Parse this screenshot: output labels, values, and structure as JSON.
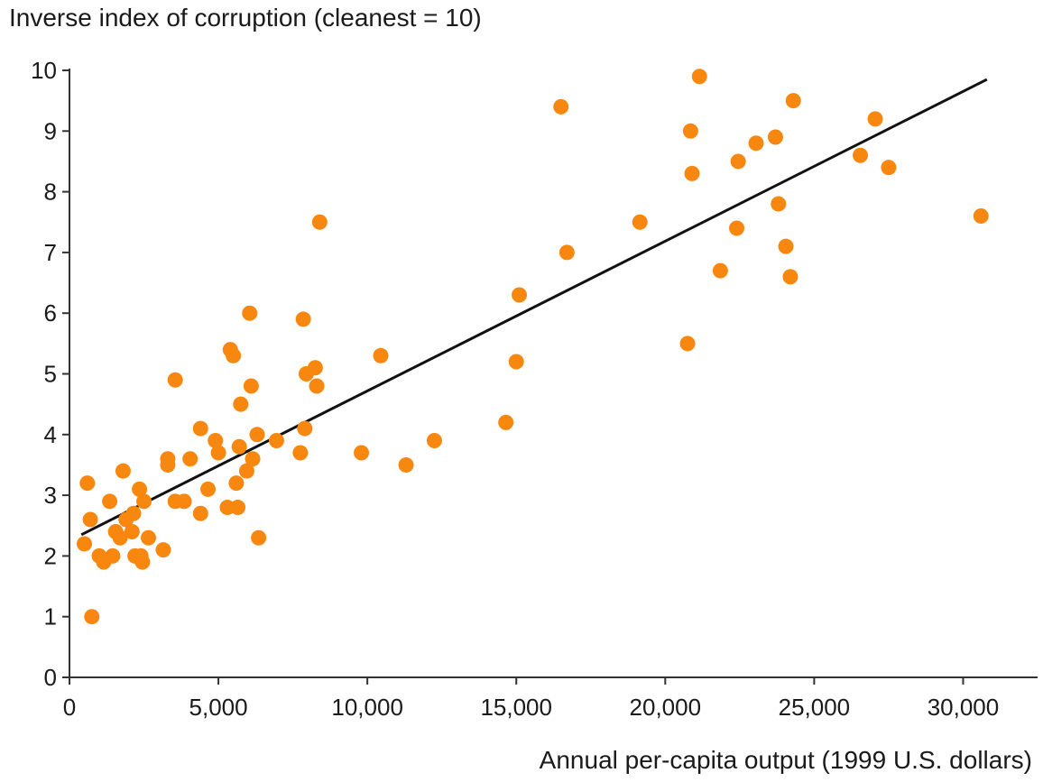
{
  "chart_data": {
    "type": "scatter",
    "title": "",
    "ylabel": "Inverse index of corruption (cleanest = 10)",
    "xlabel": "Annual per-capita output (1999 U.S. dollars)",
    "xlim": [
      0,
      32500
    ],
    "ylim": [
      0,
      10
    ],
    "x_ticks": [
      0,
      5000,
      10000,
      15000,
      20000,
      25000,
      30000
    ],
    "x_tick_labels": [
      "0",
      "5,000",
      "10,000",
      "15,000",
      "20,000",
      "25,000",
      "30,000"
    ],
    "y_ticks": [
      0,
      1,
      2,
      3,
      4,
      5,
      6,
      7,
      8,
      9,
      10
    ],
    "y_tick_labels": [
      "0",
      "1",
      "2",
      "3",
      "4",
      "5",
      "6",
      "7",
      "8",
      "9",
      "10"
    ],
    "grid": false,
    "point_color": "#f7870f",
    "line_color": "#111111",
    "trend_line": {
      "x": [
        400,
        30800
      ],
      "y": [
        2.35,
        9.85
      ]
    },
    "points": [
      {
        "x": 600,
        "y": 3.2
      },
      {
        "x": 500,
        "y": 2.2
      },
      {
        "x": 700,
        "y": 2.6
      },
      {
        "x": 750,
        "y": 1.0
      },
      {
        "x": 1000,
        "y": 2.0
      },
      {
        "x": 1150,
        "y": 1.9
      },
      {
        "x": 1350,
        "y": 2.9
      },
      {
        "x": 1450,
        "y": 2.0
      },
      {
        "x": 1550,
        "y": 2.4
      },
      {
        "x": 1700,
        "y": 2.3
      },
      {
        "x": 1800,
        "y": 3.4
      },
      {
        "x": 1900,
        "y": 2.6
      },
      {
        "x": 2100,
        "y": 2.4
      },
      {
        "x": 2150,
        "y": 2.7
      },
      {
        "x": 2200,
        "y": 2.0
      },
      {
        "x": 2350,
        "y": 3.1
      },
      {
        "x": 2400,
        "y": 2.0
      },
      {
        "x": 2450,
        "y": 1.9
      },
      {
        "x": 2500,
        "y": 2.9
      },
      {
        "x": 2650,
        "y": 2.3
      },
      {
        "x": 3150,
        "y": 2.1
      },
      {
        "x": 3300,
        "y": 3.6
      },
      {
        "x": 3300,
        "y": 3.5
      },
      {
        "x": 3550,
        "y": 2.9
      },
      {
        "x": 3550,
        "y": 4.9
      },
      {
        "x": 3850,
        "y": 2.9
      },
      {
        "x": 4050,
        "y": 3.6
      },
      {
        "x": 4400,
        "y": 2.7
      },
      {
        "x": 4400,
        "y": 4.1
      },
      {
        "x": 4650,
        "y": 3.1
      },
      {
        "x": 4900,
        "y": 3.9
      },
      {
        "x": 5000,
        "y": 3.7
      },
      {
        "x": 5300,
        "y": 2.8
      },
      {
        "x": 5400,
        "y": 5.4
      },
      {
        "x": 5500,
        "y": 5.3
      },
      {
        "x": 5600,
        "y": 3.2
      },
      {
        "x": 5650,
        "y": 2.8
      },
      {
        "x": 5700,
        "y": 3.8
      },
      {
        "x": 5750,
        "y": 4.5
      },
      {
        "x": 5950,
        "y": 3.4
      },
      {
        "x": 6050,
        "y": 6.0
      },
      {
        "x": 6100,
        "y": 4.8
      },
      {
        "x": 6150,
        "y": 3.6
      },
      {
        "x": 6300,
        "y": 4.0
      },
      {
        "x": 6350,
        "y": 2.3
      },
      {
        "x": 6950,
        "y": 3.9
      },
      {
        "x": 7750,
        "y": 3.7
      },
      {
        "x": 7850,
        "y": 5.9
      },
      {
        "x": 7900,
        "y": 4.1
      },
      {
        "x": 7950,
        "y": 5.0
      },
      {
        "x": 8250,
        "y": 5.1
      },
      {
        "x": 8300,
        "y": 4.8
      },
      {
        "x": 8400,
        "y": 7.5
      },
      {
        "x": 9800,
        "y": 3.7
      },
      {
        "x": 10450,
        "y": 5.3
      },
      {
        "x": 11300,
        "y": 3.5
      },
      {
        "x": 12250,
        "y": 3.9
      },
      {
        "x": 14650,
        "y": 4.2
      },
      {
        "x": 15000,
        "y": 5.2
      },
      {
        "x": 15100,
        "y": 6.3
      },
      {
        "x": 16500,
        "y": 9.4
      },
      {
        "x": 16700,
        "y": 7.0
      },
      {
        "x": 19150,
        "y": 7.5
      },
      {
        "x": 20750,
        "y": 5.5
      },
      {
        "x": 20850,
        "y": 9.0
      },
      {
        "x": 20900,
        "y": 8.3
      },
      {
        "x": 21150,
        "y": 9.9
      },
      {
        "x": 21850,
        "y": 6.7
      },
      {
        "x": 22400,
        "y": 7.4
      },
      {
        "x": 22450,
        "y": 8.5
      },
      {
        "x": 23050,
        "y": 8.8
      },
      {
        "x": 23700,
        "y": 8.9
      },
      {
        "x": 23800,
        "y": 7.8
      },
      {
        "x": 24050,
        "y": 7.1
      },
      {
        "x": 24200,
        "y": 6.6
      },
      {
        "x": 24300,
        "y": 9.5
      },
      {
        "x": 26550,
        "y": 8.6
      },
      {
        "x": 27050,
        "y": 9.2
      },
      {
        "x": 27500,
        "y": 8.4
      },
      {
        "x": 30600,
        "y": 7.6
      }
    ]
  }
}
